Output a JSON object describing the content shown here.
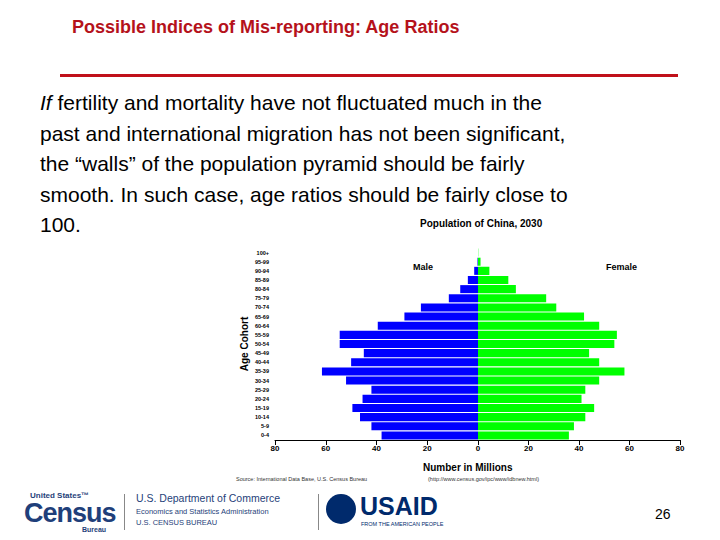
{
  "slide": {
    "title": "Possible Indices of Mis-reporting: Age Ratios",
    "italic_lead": "If",
    "lines": [
      "fertility and mortality have not fluctuated much in the",
      "past and international migration has not been significant,",
      "the “walls” of the population pyramid should be fairly",
      "smooth.  In such case, age ratios should be fairly close to",
      "100."
    ],
    "source": "Source: International Data Base, U.S. Census Bureau",
    "source_url": "(http://www.census.gov/ipc/www/idbnew.html)",
    "census_logo": [
      "United States™",
      "Census",
      "Bureau"
    ],
    "commerce": [
      "U.S. Department of Commerce",
      "Economics and Statistics Administration",
      "U.S. CENSUS BUREAU"
    ],
    "usaid": [
      "USAID",
      "FROM THE AMERICAN PEOPLE"
    ],
    "page_number": "26"
  },
  "chart_data": {
    "type": "bar",
    "orientation": "horizontal",
    "title": "Population of China, 2030",
    "y_label": "Age Cohort",
    "x_label": "Number in Millions",
    "categories": [
      "0-4",
      "5-9",
      "10-14",
      "15-19",
      "20-24",
      "25-29",
      "30-34",
      "35-39",
      "40-44",
      "45-49",
      "50-54",
      "55-59",
      "60-64",
      "65-69",
      "70-74",
      "75-79",
      "80-84",
      "85-89",
      "90-94",
      "95-99",
      "100+"
    ],
    "series": [
      {
        "name": "Male",
        "color": "#0000ff",
        "axis": "x",
        "values": [
          38,
          42,
          46.5,
          49.5,
          45.5,
          42,
          52,
          61.5,
          50,
          45,
          54.5,
          54.5,
          39.5,
          29,
          22.5,
          11.5,
          7,
          4,
          1.5,
          0.2,
          0
        ]
      },
      {
        "name": "Female",
        "color": "#00ff00",
        "axis": "x2",
        "values": [
          36,
          38,
          42.5,
          46,
          41,
          42.5,
          48,
          58,
          48,
          44,
          54,
          55,
          48,
          42,
          31,
          27,
          15,
          12,
          4.5,
          1,
          0.1
        ]
      }
    ],
    "xlim": [
      0,
      80
    ],
    "xticks": [
      20,
      40,
      60,
      80
    ],
    "x2lim": [
      0,
      80
    ],
    "x2ticks": [
      0,
      20,
      40,
      60,
      80
    ],
    "grid": false
  }
}
